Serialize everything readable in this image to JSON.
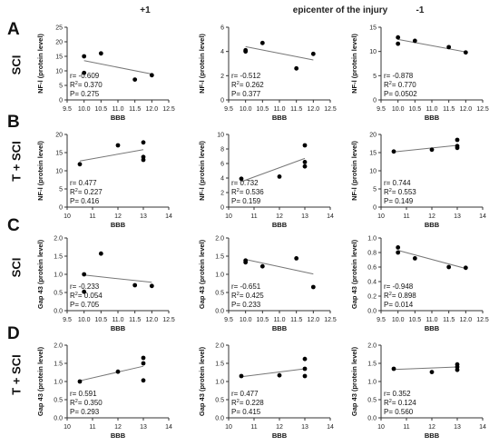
{
  "columns": [
    "+1",
    "epicenter of the injury",
    "-1"
  ],
  "rows": [
    {
      "letter": "A",
      "group": "SCI"
    },
    {
      "letter": "B",
      "group": "T + SCI"
    },
    {
      "letter": "C",
      "group": "SCI"
    },
    {
      "letter": "D",
      "group": "T + SCI"
    }
  ],
  "chart_data": [
    {
      "type": "scatter",
      "row": 0,
      "col": 0,
      "ylabel": "NF-l (protein level)",
      "xlabel": "BBB",
      "xlim": [
        9.5,
        12.5
      ],
      "xticks": [
        "9.5",
        "10.0",
        "10.5",
        "11.0",
        "11.5",
        "12.0",
        "12.5"
      ],
      "ylim": [
        0,
        25
      ],
      "yticks": [
        "0",
        "5",
        "10",
        "15",
        "20",
        "25"
      ],
      "points": [
        [
          10.0,
          15.0
        ],
        [
          10.5,
          16.0
        ],
        [
          10.0,
          9.3
        ],
        [
          11.5,
          7.0
        ],
        [
          12.0,
          8.5
        ]
      ],
      "fit": [
        [
          10.0,
          13.5
        ],
        [
          12.0,
          8.9
        ]
      ],
      "stats": [
        "r= -0.609",
        "R2= 0.370",
        "P= 0.275"
      ]
    },
    {
      "type": "scatter",
      "row": 0,
      "col": 1,
      "ylabel": "NF-l (protein level)",
      "xlabel": "BBB",
      "xlim": [
        9.5,
        12.5
      ],
      "xticks": [
        "9.5",
        "10.0",
        "10.5",
        "11.0",
        "11.5",
        "12.0",
        "12.5"
      ],
      "ylim": [
        0,
        6
      ],
      "yticks": [
        "0",
        "2",
        "4",
        "6"
      ],
      "points": [
        [
          10.0,
          4.1
        ],
        [
          10.0,
          4.0
        ],
        [
          10.5,
          4.7
        ],
        [
          11.5,
          2.6
        ],
        [
          12.0,
          3.8
        ]
      ],
      "fit": [
        [
          10.0,
          4.4
        ],
        [
          12.0,
          3.3
        ]
      ],
      "stats": [
        "r= -0.512",
        "R2= 0.262",
        "P= 0.377"
      ]
    },
    {
      "type": "scatter",
      "row": 0,
      "col": 2,
      "ylabel": "NF-l (protein level)",
      "xlabel": "BBB",
      "xlim": [
        9.5,
        12.5
      ],
      "xticks": [
        "9.5",
        "10.0",
        "10.5",
        "11.0",
        "11.5",
        "12.0",
        "12.5"
      ],
      "ylim": [
        0,
        15
      ],
      "yticks": [
        "0",
        "5",
        "10",
        "15"
      ],
      "points": [
        [
          10.0,
          12.9
        ],
        [
          10.0,
          11.6
        ],
        [
          10.5,
          12.2
        ],
        [
          11.5,
          10.9
        ],
        [
          12.0,
          9.8
        ]
      ],
      "fit": [
        [
          10.0,
          12.5
        ],
        [
          12.0,
          9.9
        ]
      ],
      "stats": [
        "r= -0.878",
        "R2= 0.770",
        "P= 0.0502"
      ]
    },
    {
      "type": "scatter",
      "row": 1,
      "col": 0,
      "ylabel": "NF-l (protein level)",
      "xlabel": "BBB",
      "xlim": [
        10,
        14
      ],
      "xticks": [
        "10",
        "11",
        "12",
        "13",
        "14"
      ],
      "ylim": [
        0,
        20
      ],
      "yticks": [
        "0",
        "5",
        "10",
        "15",
        "20"
      ],
      "points": [
        [
          10.5,
          11.8
        ],
        [
          12.0,
          17.0
        ],
        [
          13.0,
          17.8
        ],
        [
          13.0,
          13.8
        ],
        [
          13.0,
          13.0
        ]
      ],
      "fit": [
        [
          10.5,
          12.7
        ],
        [
          13.0,
          15.8
        ]
      ],
      "stats": [
        "r= 0.477",
        "R2= 0.227",
        "P= 0.416"
      ]
    },
    {
      "type": "scatter",
      "row": 1,
      "col": 1,
      "ylabel": "NF-l (protein level)",
      "xlabel": "BBB",
      "xlim": [
        10,
        14
      ],
      "xticks": [
        "10",
        "11",
        "12",
        "13",
        "14"
      ],
      "ylim": [
        0,
        10
      ],
      "yticks": [
        "0",
        "2",
        "4",
        "6",
        "8",
        "10"
      ],
      "points": [
        [
          10.5,
          3.9
        ],
        [
          12.0,
          4.2
        ],
        [
          13.0,
          8.5
        ],
        [
          13.0,
          6.2
        ],
        [
          13.0,
          5.6
        ]
      ],
      "fit": [
        [
          10.5,
          3.5
        ],
        [
          13.0,
          6.7
        ]
      ],
      "stats": [
        "r= 0.732",
        "R2= 0.536",
        "P= 0.159"
      ]
    },
    {
      "type": "scatter",
      "row": 1,
      "col": 2,
      "ylabel": "NF-l (protein level)",
      "xlabel": "BBB",
      "xlim": [
        10,
        14
      ],
      "xticks": [
        "10",
        "11",
        "12",
        "13",
        "14"
      ],
      "ylim": [
        0,
        20
      ],
      "yticks": [
        "0",
        "5",
        "10",
        "15",
        "20"
      ],
      "points": [
        [
          10.5,
          15.3
        ],
        [
          12.0,
          15.8
        ],
        [
          13.0,
          18.5
        ],
        [
          13.0,
          16.8
        ],
        [
          13.0,
          16.3
        ]
      ],
      "fit": [
        [
          10.5,
          15.2
        ],
        [
          13.0,
          17.0
        ]
      ],
      "stats": [
        "r= 0.744",
        "R2= 0.553",
        "P= 0.149"
      ]
    },
    {
      "type": "scatter",
      "row": 2,
      "col": 0,
      "ylabel": "Gap 43 (protein level)",
      "xlabel": "BBB",
      "xlim": [
        9.5,
        12.5
      ],
      "xticks": [
        "9.5",
        "10.0",
        "10.5",
        "11.0",
        "11.5",
        "12.0",
        "12.5"
      ],
      "ylim": [
        0,
        2.0
      ],
      "yticks": [
        "0.0",
        "0.5",
        "1.0",
        "1.5",
        "2.0"
      ],
      "points": [
        [
          10.0,
          1.0
        ],
        [
          10.0,
          0.52
        ],
        [
          10.5,
          1.57
        ],
        [
          11.5,
          0.7
        ],
        [
          12.0,
          0.68
        ]
      ],
      "fit": [
        [
          10.0,
          0.98
        ],
        [
          12.0,
          0.78
        ]
      ],
      "stats": [
        "r= -0.233",
        "R2= 0.054",
        "P= 0.705"
      ]
    },
    {
      "type": "scatter",
      "row": 2,
      "col": 1,
      "ylabel": "Gap 43 (protein level)",
      "xlabel": "BBB",
      "xlim": [
        9.5,
        12.5
      ],
      "xticks": [
        "9.5",
        "10.0",
        "10.5",
        "11.0",
        "11.5",
        "12.0",
        "12.5"
      ],
      "ylim": [
        0,
        2.0
      ],
      "yticks": [
        "0.0",
        "0.5",
        "1.0",
        "1.5",
        "2.0"
      ],
      "points": [
        [
          10.0,
          1.38
        ],
        [
          10.0,
          1.33
        ],
        [
          10.5,
          1.22
        ],
        [
          11.5,
          1.44
        ],
        [
          12.0,
          0.65
        ]
      ],
      "fit": [
        [
          10.0,
          1.41
        ],
        [
          12.0,
          1.01
        ]
      ],
      "stats": [
        "r= -0.651",
        "R2= 0.425",
        "P= 0.233"
      ]
    },
    {
      "type": "scatter",
      "row": 2,
      "col": 2,
      "ylabel": "Gap 43 (protein level)",
      "xlabel": "BBB",
      "xlim": [
        9.5,
        12.5
      ],
      "xticks": [
        "9.5",
        "10.0",
        "10.5",
        "11.0",
        "11.5",
        "12.0",
        "12.5"
      ],
      "ylim": [
        0,
        1.0
      ],
      "yticks": [
        "0.0",
        "0.2",
        "0.4",
        "0.6",
        "0.8",
        "1.0"
      ],
      "points": [
        [
          10.0,
          0.87
        ],
        [
          10.0,
          0.8
        ],
        [
          10.5,
          0.72
        ],
        [
          11.5,
          0.6
        ],
        [
          12.0,
          0.59
        ]
      ],
      "fit": [
        [
          10.0,
          0.83
        ],
        [
          12.0,
          0.58
        ]
      ],
      "stats": [
        "r= -0.948",
        "R2= 0.898",
        "P= 0.014"
      ]
    },
    {
      "type": "scatter",
      "row": 3,
      "col": 0,
      "ylabel": "Gap 43 (protein level)",
      "xlabel": "BBB",
      "xlim": [
        10,
        14
      ],
      "xticks": [
        "10",
        "11",
        "12",
        "13",
        "14"
      ],
      "ylim": [
        0,
        2.0
      ],
      "yticks": [
        "0.0",
        "0.5",
        "1.0",
        "1.5",
        "2.0"
      ],
      "points": [
        [
          10.5,
          1.0
        ],
        [
          12.0,
          1.27
        ],
        [
          13.0,
          1.65
        ],
        [
          13.0,
          1.5
        ],
        [
          13.0,
          1.03
        ]
      ],
      "fit": [
        [
          10.5,
          1.02
        ],
        [
          13.0,
          1.42
        ]
      ],
      "stats": [
        "r= 0.591",
        "R2= 0.350",
        "P= 0.293"
      ]
    },
    {
      "type": "scatter",
      "row": 3,
      "col": 1,
      "ylabel": "Gap 43 (protein level)",
      "xlabel": "BBB",
      "xlim": [
        10,
        14
      ],
      "xticks": [
        "10",
        "11",
        "12",
        "13",
        "14"
      ],
      "ylim": [
        0,
        2.0
      ],
      "yticks": [
        "0.0",
        "0.5",
        "1.0",
        "1.5",
        "2.0"
      ],
      "points": [
        [
          10.5,
          1.15
        ],
        [
          12.0,
          1.17
        ],
        [
          13.0,
          1.62
        ],
        [
          13.0,
          1.35
        ],
        [
          13.0,
          1.15
        ]
      ],
      "fit": [
        [
          10.5,
          1.13
        ],
        [
          13.0,
          1.35
        ]
      ],
      "stats": [
        "r= 0.477",
        "R2= 0.228",
        "P= 0.415"
      ]
    },
    {
      "type": "scatter",
      "row": 3,
      "col": 2,
      "ylabel": "Gap 43 (protein level)",
      "xlabel": "BBB",
      "xlim": [
        10,
        14
      ],
      "xticks": [
        "10",
        "11",
        "12",
        "13",
        "14"
      ],
      "ylim": [
        0,
        2.0
      ],
      "yticks": [
        "0.0",
        "0.5",
        "1.0",
        "1.5",
        "2.0"
      ],
      "points": [
        [
          10.5,
          1.35
        ],
        [
          12.0,
          1.26
        ],
        [
          13.0,
          1.47
        ],
        [
          13.0,
          1.4
        ],
        [
          13.0,
          1.32
        ]
      ],
      "fit": [
        [
          10.5,
          1.33
        ],
        [
          13.0,
          1.4
        ]
      ],
      "stats": [
        "r= 0.352",
        "R2= 0.124",
        "P= 0.560"
      ]
    }
  ]
}
